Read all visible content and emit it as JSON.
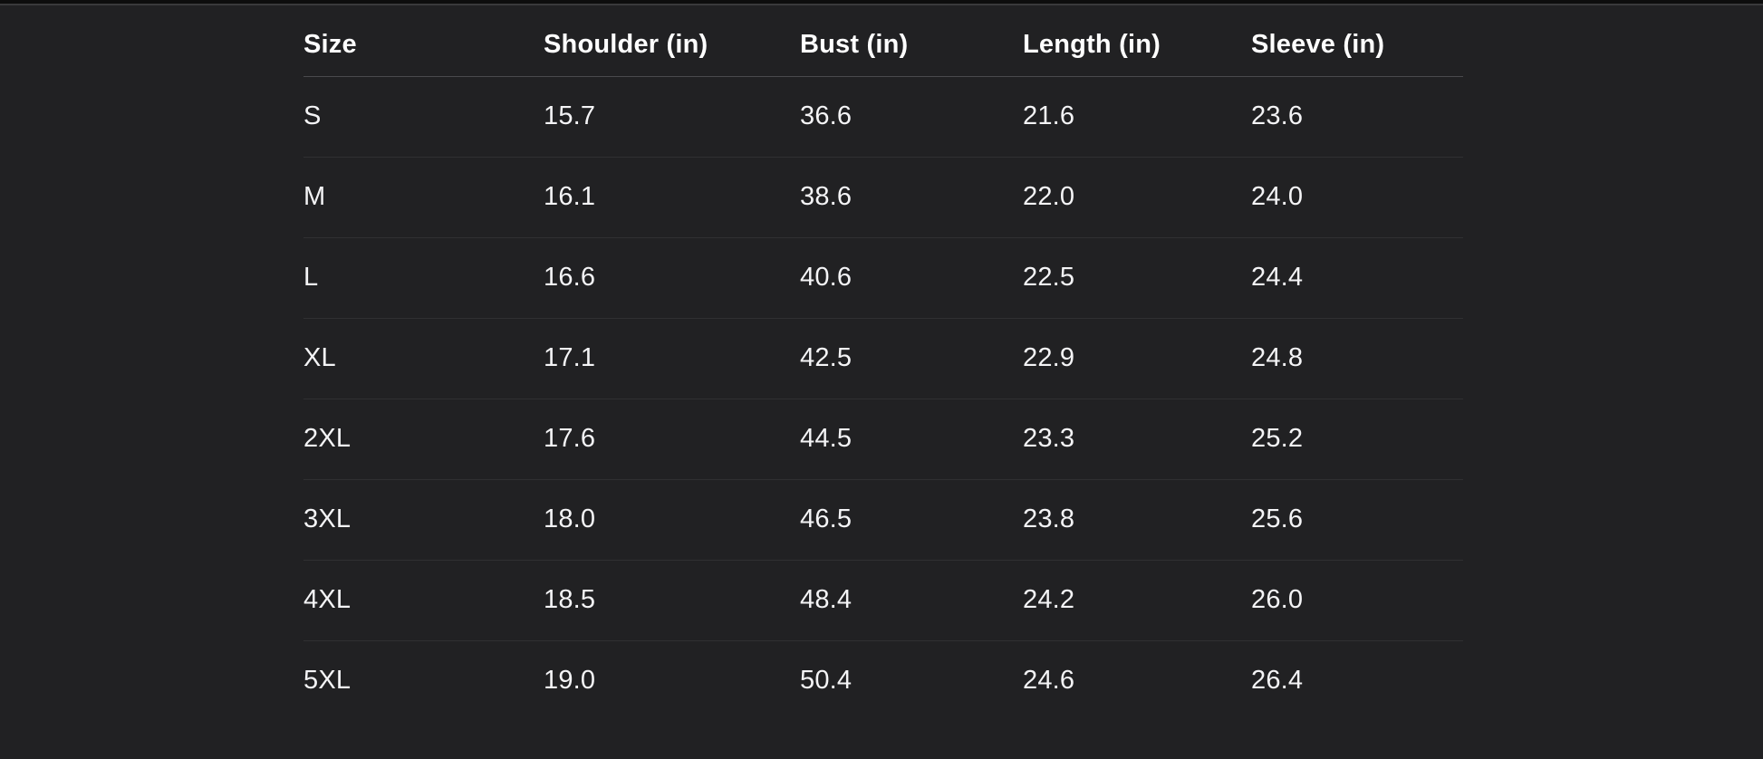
{
  "colors": {
    "bg": "#212123",
    "top-strip": "#0d0d0d",
    "top-line": "#39393b",
    "header-divider": "#4a4a4d",
    "row-divider": "#303032",
    "header-text": "#ffffff",
    "cell-text": "#f4f4f6"
  },
  "size_chart": {
    "columns": [
      "Size",
      "Shoulder (in)",
      "Bust (in)",
      "Length (in)",
      "Sleeve (in)"
    ],
    "rows": [
      [
        "S",
        "15.7",
        "36.6",
        "21.6",
        "23.6"
      ],
      [
        "M",
        "16.1",
        "38.6",
        "22.0",
        "24.0"
      ],
      [
        "L",
        "16.6",
        "40.6",
        "22.5",
        "24.4"
      ],
      [
        "XL",
        "17.1",
        "42.5",
        "22.9",
        "24.8"
      ],
      [
        "2XL",
        "17.6",
        "44.5",
        "23.3",
        "25.2"
      ],
      [
        "3XL",
        "18.0",
        "46.5",
        "23.8",
        "25.6"
      ],
      [
        "4XL",
        "18.5",
        "48.4",
        "24.2",
        "26.0"
      ],
      [
        "5XL",
        "19.0",
        "50.4",
        "24.6",
        "26.4"
      ]
    ]
  }
}
